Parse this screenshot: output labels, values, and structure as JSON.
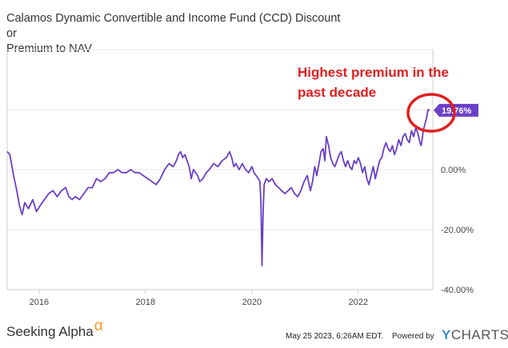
{
  "chart_data": {
    "type": "line",
    "title_lines": [
      "Calamos Dynamic Convertible and Income Fund (CCD) Discount or",
      "Premium to NAV"
    ],
    "y_ticks": [
      {
        "value": 0,
        "label": "0.00%"
      },
      {
        "value": -20,
        "label": "-20.00%"
      },
      {
        "value": -40,
        "label": "-40.00%"
      }
    ],
    "x_ticks": [
      {
        "value": 2016,
        "label": "2016"
      },
      {
        "value": 2018,
        "label": "2018"
      },
      {
        "value": 2020,
        "label": "2020"
      },
      {
        "value": 2022,
        "label": "2022"
      }
    ],
    "xlim": [
      2015.4,
      2023.4
    ],
    "ylim": [
      -40,
      40
    ],
    "last_value_label": "19.76%",
    "annotation": [
      "Highest premium in the",
      "past decade"
    ],
    "series": [
      {
        "color": "#6a3fc8",
        "points": [
          [
            2015.4,
            6
          ],
          [
            2015.45,
            5
          ],
          [
            2015.52,
            -2
          ],
          [
            2015.58,
            -7
          ],
          [
            2015.63,
            -12
          ],
          [
            2015.68,
            -15
          ],
          [
            2015.73,
            -11
          ],
          [
            2015.8,
            -13
          ],
          [
            2015.88,
            -10
          ],
          [
            2015.95,
            -14
          ],
          [
            2016.02,
            -12
          ],
          [
            2016.1,
            -10
          ],
          [
            2016.18,
            -8
          ],
          [
            2016.26,
            -7
          ],
          [
            2016.34,
            -9
          ],
          [
            2016.42,
            -7
          ],
          [
            2016.5,
            -6
          ],
          [
            2016.56,
            -9
          ],
          [
            2016.62,
            -10
          ],
          [
            2016.68,
            -9
          ],
          [
            2016.76,
            -10
          ],
          [
            2016.84,
            -8
          ],
          [
            2016.92,
            -6
          ],
          [
            2017.0,
            -6
          ],
          [
            2017.08,
            -3
          ],
          [
            2017.16,
            -4
          ],
          [
            2017.24,
            -3
          ],
          [
            2017.32,
            -1
          ],
          [
            2017.4,
            -1
          ],
          [
            2017.48,
            0
          ],
          [
            2017.56,
            -1
          ],
          [
            2017.64,
            -1
          ],
          [
            2017.72,
            0
          ],
          [
            2017.8,
            -1
          ],
          [
            2017.88,
            -1
          ],
          [
            2017.96,
            -2
          ],
          [
            2018.04,
            -3
          ],
          [
            2018.12,
            -4
          ],
          [
            2018.2,
            -5
          ],
          [
            2018.28,
            -3
          ],
          [
            2018.36,
            0
          ],
          [
            2018.44,
            2
          ],
          [
            2018.52,
            1
          ],
          [
            2018.58,
            3
          ],
          [
            2018.62,
            5
          ],
          [
            2018.66,
            6
          ],
          [
            2018.7,
            4
          ],
          [
            2018.74,
            5
          ],
          [
            2018.78,
            3
          ],
          [
            2018.82,
            1
          ],
          [
            2018.86,
            -3
          ],
          [
            2018.9,
            0
          ],
          [
            2018.94,
            -1
          ],
          [
            2018.98,
            -2
          ],
          [
            2019.02,
            -4
          ],
          [
            2019.08,
            -3
          ],
          [
            2019.14,
            -1
          ],
          [
            2019.2,
            0
          ],
          [
            2019.28,
            2
          ],
          [
            2019.36,
            1
          ],
          [
            2019.44,
            3
          ],
          [
            2019.52,
            4
          ],
          [
            2019.58,
            6
          ],
          [
            2019.62,
            4
          ],
          [
            2019.66,
            1
          ],
          [
            2019.7,
            2
          ],
          [
            2019.76,
            0
          ],
          [
            2019.82,
            2
          ],
          [
            2019.88,
            0
          ],
          [
            2019.94,
            -1
          ],
          [
            2020.0,
            1
          ],
          [
            2020.04,
            -1
          ],
          [
            2020.08,
            -2
          ],
          [
            2020.12,
            -3
          ],
          [
            2020.15,
            -4
          ],
          [
            2020.17,
            -11
          ],
          [
            2020.19,
            -32
          ],
          [
            2020.21,
            -14
          ],
          [
            2020.23,
            -5
          ],
          [
            2020.27,
            -3
          ],
          [
            2020.32,
            -4
          ],
          [
            2020.38,
            -3
          ],
          [
            2020.44,
            -5
          ],
          [
            2020.5,
            -6
          ],
          [
            2020.56,
            -7
          ],
          [
            2020.62,
            -8
          ],
          [
            2020.68,
            -7
          ],
          [
            2020.74,
            -6
          ],
          [
            2020.8,
            -8
          ],
          [
            2020.86,
            -9
          ],
          [
            2020.92,
            -7
          ],
          [
            2020.98,
            -4
          ],
          [
            2021.04,
            -2
          ],
          [
            2021.1,
            -7
          ],
          [
            2021.14,
            -4
          ],
          [
            2021.18,
            1
          ],
          [
            2021.22,
            -2
          ],
          [
            2021.26,
            2
          ],
          [
            2021.3,
            6
          ],
          [
            2021.34,
            7
          ],
          [
            2021.37,
            3
          ],
          [
            2021.4,
            11
          ],
          [
            2021.44,
            8
          ],
          [
            2021.48,
            4
          ],
          [
            2021.52,
            2
          ],
          [
            2021.56,
            1
          ],
          [
            2021.6,
            3
          ],
          [
            2021.64,
            5
          ],
          [
            2021.68,
            6
          ],
          [
            2021.72,
            3
          ],
          [
            2021.76,
            1
          ],
          [
            2021.8,
            3
          ],
          [
            2021.84,
            1
          ],
          [
            2021.88,
            0
          ],
          [
            2021.92,
            3
          ],
          [
            2021.96,
            2
          ],
          [
            2022.0,
            4
          ],
          [
            2022.04,
            2
          ],
          [
            2022.08,
            -1
          ],
          [
            2022.12,
            1
          ],
          [
            2022.16,
            -3
          ],
          [
            2022.2,
            -5
          ],
          [
            2022.24,
            -2
          ],
          [
            2022.28,
            1
          ],
          [
            2022.32,
            -3
          ],
          [
            2022.36,
            0
          ],
          [
            2022.4,
            3
          ],
          [
            2022.44,
            4
          ],
          [
            2022.48,
            7
          ],
          [
            2022.52,
            9
          ],
          [
            2022.56,
            7
          ],
          [
            2022.6,
            6
          ],
          [
            2022.64,
            8
          ],
          [
            2022.68,
            5
          ],
          [
            2022.72,
            7
          ],
          [
            2022.76,
            10
          ],
          [
            2022.8,
            8
          ],
          [
            2022.84,
            11
          ],
          [
            2022.88,
            12
          ],
          [
            2022.92,
            10
          ],
          [
            2022.96,
            9
          ],
          [
            2023.0,
            13
          ],
          [
            2023.04,
            11
          ],
          [
            2023.08,
            14
          ],
          [
            2023.12,
            12
          ],
          [
            2023.16,
            9
          ],
          [
            2023.18,
            8
          ],
          [
            2023.2,
            10
          ],
          [
            2023.22,
            13
          ],
          [
            2023.25,
            15
          ],
          [
            2023.28,
            17
          ],
          [
            2023.31,
            20
          ],
          [
            2023.34,
            19.76
          ]
        ]
      }
    ]
  },
  "footer": {
    "brand": "Seeking Alpha",
    "brand_symbol": "α",
    "date": "May 25 2023, 6:26AM EDT.",
    "powered_by": "Powered by",
    "ycharts_y": "Y",
    "ycharts_rest": "CHARTS"
  },
  "colors": {
    "line": "#6a3fc8",
    "annotation": "#e02020",
    "axis": "#cccccc",
    "grid": "#e8e8e8"
  }
}
